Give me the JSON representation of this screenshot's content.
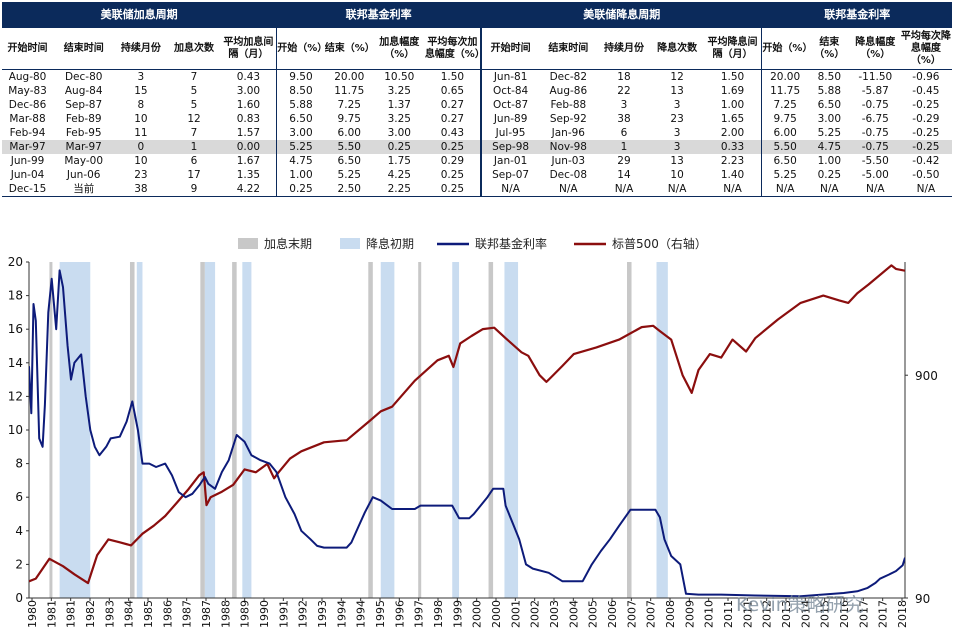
{
  "table": {
    "groups": [
      "美联储加息周期",
      "联邦基金利率",
      "美联储降息周期",
      "联邦基金利率"
    ],
    "columns": [
      "开始时间",
      "结束时间",
      "持续月份",
      "加息次数",
      "平均加息间隔（月）",
      "开始（%）",
      "结束（%）",
      "加息幅度（%）",
      "平均每次加息幅度（%）",
      "开始时间",
      "结束时间",
      "持续月份",
      "降息次数",
      "平均降息间隔（月）",
      "开始（%）",
      "结束（%）",
      "降息幅度（%）",
      "平均每次降息幅度（%）"
    ],
    "rows": [
      [
        "Aug-80",
        "Dec-80",
        "3",
        "7",
        "0.43",
        "9.50",
        "20.00",
        "10.50",
        "1.50",
        "Jun-81",
        "Dec-82",
        "18",
        "12",
        "1.50",
        "20.00",
        "8.50",
        "-11.50",
        "-0.96"
      ],
      [
        "May-83",
        "Aug-84",
        "15",
        "5",
        "3.00",
        "8.50",
        "11.75",
        "3.25",
        "0.65",
        "Oct-84",
        "Aug-86",
        "22",
        "13",
        "1.69",
        "11.75",
        "5.88",
        "-5.87",
        "-0.45"
      ],
      [
        "Dec-86",
        "Sep-87",
        "8",
        "5",
        "1.60",
        "5.88",
        "7.25",
        "1.37",
        "0.27",
        "Oct-87",
        "Feb-88",
        "3",
        "3",
        "1.00",
        "7.25",
        "6.50",
        "-0.75",
        "-0.25"
      ],
      [
        "Mar-88",
        "Feb-89",
        "10",
        "12",
        "0.83",
        "6.50",
        "9.75",
        "3.25",
        "0.27",
        "Jun-89",
        "Sep-92",
        "38",
        "23",
        "1.65",
        "9.75",
        "3.00",
        "-6.75",
        "-0.29"
      ],
      [
        "Feb-94",
        "Feb-95",
        "11",
        "7",
        "1.57",
        "3.00",
        "6.00",
        "3.00",
        "0.43",
        "Jul-95",
        "Jan-96",
        "6",
        "3",
        "2.00",
        "6.00",
        "5.25",
        "-0.75",
        "-0.25"
      ],
      [
        "Mar-97",
        "Mar-97",
        "0",
        "1",
        "0.00",
        "5.25",
        "5.50",
        "0.25",
        "0.25",
        "Sep-98",
        "Nov-98",
        "1",
        "3",
        "0.33",
        "5.50",
        "4.75",
        "-0.75",
        "-0.25"
      ],
      [
        "Jun-99",
        "May-00",
        "10",
        "6",
        "1.67",
        "4.75",
        "6.50",
        "1.75",
        "0.29",
        "Jan-01",
        "Jun-03",
        "29",
        "13",
        "2.23",
        "6.50",
        "1.00",
        "-5.50",
        "-0.42"
      ],
      [
        "Jun-04",
        "Jun-06",
        "23",
        "17",
        "1.35",
        "1.00",
        "5.25",
        "4.25",
        "0.25",
        "Sep-07",
        "Dec-08",
        "14",
        "10",
        "1.40",
        "5.25",
        "0.25",
        "-5.00",
        "-0.50"
      ],
      [
        "Dec-15",
        "当前",
        "38",
        "9",
        "4.22",
        "0.25",
        "2.50",
        "2.25",
        "0.25",
        "N/A",
        "N/A",
        "N/A",
        "N/A",
        "N/A",
        "N/A",
        "N/A",
        "N/A",
        "N/A"
      ]
    ],
    "highlight_row": 5
  },
  "chart_data": {
    "type": "line",
    "legend": [
      "加息末期",
      "降息初期",
      "联邦基金利率",
      "标普500（右轴）"
    ],
    "colors": {
      "hike_end": "#c8c8c8",
      "cut_start": "#c9dcf0",
      "fed": "#0d1b7a",
      "spx": "#8b0e0e"
    },
    "x_ticks": [
      "1980",
      "1981",
      "1981",
      "1982",
      "1983",
      "1984",
      "1985",
      "1986",
      "1987",
      "1987",
      "1988",
      "1989",
      "1990",
      "1991",
      "1992",
      "1993",
      "1994",
      "1994",
      "1995",
      "1996",
      "1997",
      "1998",
      "1999",
      "2000",
      "2000",
      "2001",
      "2002",
      "2003",
      "2004",
      "2005",
      "2006",
      "2007",
      "2007",
      "2008",
      "2009",
      "2010",
      "2011",
      "2011",
      "2012",
      "2013",
      "2014",
      "2015",
      "2016",
      "2017",
      "2017",
      "2018"
    ],
    "x_range": [
      1980.0,
      2018.6
    ],
    "y_left": {
      "min": 0,
      "max": 20,
      "ticks": [
        0,
        2,
        4,
        6,
        8,
        10,
        12,
        14,
        16,
        18,
        20
      ]
    },
    "y_right": {
      "type": "log",
      "min": 90,
      "max": 2900,
      "tick_labels": [
        "90",
        "900"
      ],
      "tick_values": [
        90,
        900
      ]
    },
    "hike_end_bands": [
      [
        1980.9,
        1981.0
      ],
      [
        1984.45,
        1984.65
      ],
      [
        1987.55,
        1987.75
      ],
      [
        1988.95,
        1989.15
      ],
      [
        1994.95,
        1995.15
      ],
      [
        1997.15,
        1997.25
      ],
      [
        2000.25,
        2000.45
      ],
      [
        2006.35,
        2006.55
      ]
    ],
    "cut_start_bands": [
      [
        1981.35,
        1982.7
      ],
      [
        1984.75,
        1985.0
      ],
      [
        1987.75,
        1988.2
      ],
      [
        1989.4,
        1989.8
      ],
      [
        1995.5,
        1996.1
      ],
      [
        1998.65,
        1998.95
      ],
      [
        2000.95,
        2001.55
      ],
      [
        2007.65,
        2008.15
      ]
    ],
    "fed_funds": {
      "x": [
        1980.0,
        1980.1,
        1980.2,
        1980.3,
        1980.45,
        1980.6,
        1980.7,
        1980.85,
        1981.0,
        1981.2,
        1981.35,
        1981.5,
        1981.7,
        1981.85,
        1982.0,
        1982.3,
        1982.5,
        1982.7,
        1982.9,
        1983.1,
        1983.4,
        1983.6,
        1984.0,
        1984.3,
        1984.55,
        1984.8,
        1985.0,
        1985.3,
        1985.6,
        1986.0,
        1986.3,
        1986.6,
        1986.9,
        1987.2,
        1987.5,
        1987.75,
        1987.9,
        1988.2,
        1988.5,
        1988.8,
        1989.15,
        1989.5,
        1989.8,
        1990.2,
        1990.6,
        1990.9,
        1991.3,
        1991.7,
        1992.0,
        1992.4,
        1992.7,
        1993.0,
        1993.5,
        1994.0,
        1994.2,
        1994.5,
        1994.8,
        1995.15,
        1995.5,
        1996.0,
        1996.5,
        1997.0,
        1997.25,
        1997.5,
        1998.0,
        1998.65,
        1998.95,
        1999.4,
        1999.6,
        1999.9,
        2000.2,
        2000.45,
        2000.9,
        2001.0,
        2001.3,
        2001.6,
        2001.9,
        2002.2,
        2002.9,
        2003.5,
        2004.4,
        2004.8,
        2005.2,
        2005.6,
        2006.0,
        2006.5,
        2007.0,
        2007.6,
        2007.8,
        2008.0,
        2008.3,
        2008.7,
        2008.95,
        2009.5,
        2010.5,
        2012.0,
        2014.0,
        2015.9,
        2016.5,
        2016.95,
        2017.3,
        2017.5,
        2017.9,
        2018.2,
        2018.5,
        2018.6
      ],
      "y": [
        13.8,
        11.0,
        17.5,
        16.5,
        9.5,
        9.0,
        11.5,
        17.0,
        19.0,
        16.0,
        19.5,
        18.5,
        15.0,
        13.0,
        14.0,
        14.5,
        12.0,
        10.0,
        9.0,
        8.5,
        9.0,
        9.5,
        9.6,
        10.5,
        11.7,
        10.0,
        8.0,
        8.0,
        7.8,
        8.0,
        7.3,
        6.3,
        6.0,
        6.2,
        6.7,
        7.2,
        6.8,
        6.5,
        7.5,
        8.2,
        9.7,
        9.3,
        8.5,
        8.2,
        8.0,
        7.5,
        6.0,
        5.0,
        4.0,
        3.5,
        3.1,
        3.0,
        3.0,
        3.0,
        3.3,
        4.2,
        5.1,
        6.0,
        5.8,
        5.3,
        5.3,
        5.3,
        5.5,
        5.5,
        5.5,
        5.5,
        4.75,
        4.75,
        5.0,
        5.5,
        6.0,
        6.5,
        6.5,
        5.5,
        4.5,
        3.5,
        2.0,
        1.75,
        1.5,
        1.0,
        1.0,
        2.0,
        2.8,
        3.5,
        4.3,
        5.25,
        5.25,
        5.25,
        4.8,
        3.5,
        2.5,
        2.0,
        0.25,
        0.2,
        0.2,
        0.15,
        0.1,
        0.3,
        0.4,
        0.6,
        0.9,
        1.15,
        1.4,
        1.6,
        1.95,
        2.4
      ]
    },
    "spx": {
      "x": [
        1980.0,
        1980.3,
        1980.9,
        1981.5,
        1982.0,
        1982.6,
        1983.0,
        1983.5,
        1984.0,
        1984.5,
        1985.0,
        1985.5,
        1986.0,
        1986.5,
        1987.0,
        1987.5,
        1987.7,
        1987.82,
        1988.0,
        1988.5,
        1989.0,
        1989.5,
        1990.0,
        1990.5,
        1990.8,
        1991.0,
        1991.5,
        1992.0,
        1993.0,
        1994.0,
        1995.0,
        1995.5,
        1996.0,
        1997.0,
        1998.0,
        1998.5,
        1998.7,
        1999.0,
        1999.5,
        2000.0,
        2000.5,
        2001.0,
        2001.7,
        2002.0,
        2002.5,
        2002.8,
        2003.0,
        2003.5,
        2004.0,
        2005.0,
        2006.0,
        2007.0,
        2007.5,
        2007.8,
        2008.3,
        2008.8,
        2009.2,
        2009.5,
        2010.0,
        2010.5,
        2011.0,
        2011.6,
        2012.0,
        2013.0,
        2014.0,
        2015.0,
        2015.7,
        2016.1,
        2016.5,
        2017.0,
        2018.0,
        2018.2,
        2018.6
      ],
      "y": [
        107,
        110,
        135,
        125,
        115,
        105,
        140,
        165,
        160,
        155,
        175,
        190,
        210,
        240,
        275,
        320,
        330,
        235,
        255,
        270,
        290,
        340,
        330,
        360,
        310,
        330,
        380,
        410,
        450,
        460,
        560,
        620,
        650,
        850,
        1050,
        1100,
        980,
        1250,
        1350,
        1450,
        1470,
        1320,
        1140,
        1100,
        900,
        840,
        880,
        990,
        1120,
        1200,
        1300,
        1480,
        1500,
        1420,
        1300,
        900,
        750,
        950,
        1120,
        1080,
        1300,
        1150,
        1320,
        1600,
        1900,
        2050,
        1950,
        1900,
        2100,
        2300,
        2800,
        2700,
        2650
      ]
    }
  }
}
